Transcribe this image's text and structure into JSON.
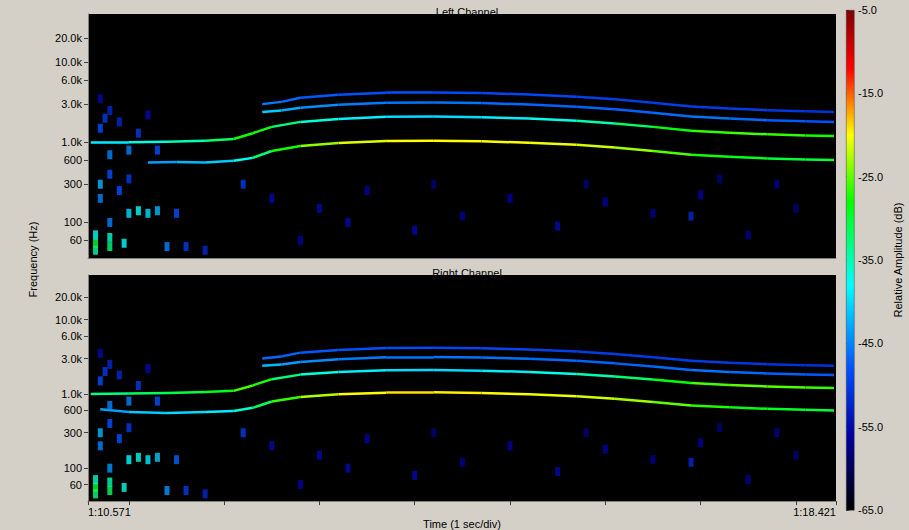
{
  "chart_data": {
    "type": "spectrogram",
    "xlabel": "Time (1 sec/div)",
    "ylabel": "Frequency (Hz)",
    "log": "y",
    "xlim": [
      70.571,
      78.421
    ],
    "xticks": [
      {
        "value": 70.571,
        "label": "1:10.571"
      },
      {
        "value": 78.421,
        "label": "1:18.421"
      }
    ],
    "time_divisions": [
      71,
      72,
      73,
      74,
      75,
      76,
      77,
      78
    ],
    "ylim": [
      36,
      40000
    ],
    "yticks": [
      60,
      100,
      300,
      600,
      {
        "value": 1000,
        "label": "1.0k"
      },
      {
        "value": 3000,
        "label": "3.0k"
      },
      {
        "value": 6000,
        "label": "6.0k"
      },
      {
        "value": 10000,
        "label": "10.0k"
      },
      {
        "value": 20000,
        "label": "20.0k"
      }
    ],
    "colorbar": {
      "label": "Relative Amplitude (dB)",
      "lim": [
        -65,
        -5
      ],
      "ticks": [
        {
          "value": -5,
          "label": "-5.0"
        },
        {
          "value": -15,
          "label": "-15.0"
        },
        {
          "value": -25,
          "label": "-25.0"
        },
        {
          "value": -35,
          "label": "-35.0"
        },
        {
          "value": -45,
          "label": "-45.0"
        },
        {
          "value": -55,
          "label": "-55.0"
        },
        {
          "value": -65,
          "label": "-65.0"
        }
      ]
    },
    "panels": [
      {
        "title": "Left Channel",
        "tracks": [
          {
            "t": [
              71.2,
              71.5,
              71.8,
              72.1,
              72.3,
              72.5,
              72.8,
              73.2,
              73.7,
              74.2,
              74.7,
              75.2,
              75.7,
              76.1,
              76.5,
              76.9,
              77.3,
              77.7,
              78.1,
              78.4
            ],
            "freq": [
              560,
              570,
              560,
              590,
              640,
              780,
              900,
              980,
              1040,
              1050,
              1030,
              990,
              930,
              860,
              780,
              700,
              660,
              630,
              610,
              600
            ],
            "db": [
              -45,
              -42,
              -42,
              -40,
              -35,
              -30,
              -25,
              -22,
              -20,
              -20,
              -20,
              -20,
              -21,
              -22,
              -24,
              -27,
              -28,
              -30,
              -30,
              -30
            ]
          },
          {
            "t": [
              70.6,
              71.0,
              71.4,
              71.8,
              72.1,
              72.3,
              72.5,
              72.8,
              73.2,
              73.7,
              74.2,
              74.7,
              75.2,
              75.7,
              76.1,
              76.5,
              76.9,
              77.3,
              77.7,
              78.1,
              78.4
            ],
            "freq": [
              1000,
              1000,
              1020,
              1050,
              1100,
              1300,
              1560,
              1800,
              1960,
              2080,
              2100,
              2060,
              1980,
              1860,
              1720,
              1560,
              1400,
              1320,
              1260,
              1220,
              1200
            ],
            "db": [
              -40,
              -38,
              -36,
              -34,
              -30,
              -25,
              -30,
              -35,
              -38,
              -40,
              -40,
              -40,
              -38,
              -36,
              -34,
              -30,
              -27,
              -26,
              -26,
              -27,
              -28
            ]
          },
          {
            "t": [
              72.4,
              72.6,
              72.8,
              73.2,
              73.7,
              74.2,
              74.7,
              75.2,
              75.7,
              76.1,
              76.5,
              76.9,
              77.3,
              77.7,
              78.1,
              78.4
            ],
            "freq": [
              2400,
              2500,
              2700,
              2940,
              3120,
              3150,
              3090,
              2970,
              2790,
              2580,
              2340,
              2100,
              1980,
              1890,
              1830,
              1800
            ],
            "db": [
              -40,
              -42,
              -44,
              -45,
              -46,
              -46,
              -46,
              -47,
              -47,
              -47,
              -47,
              -46,
              -46,
              -47,
              -48,
              -48
            ]
          },
          {
            "t": [
              72.4,
              72.6,
              72.8,
              73.2,
              73.7,
              74.2,
              74.7,
              75.2,
              75.7,
              76.1,
              76.5,
              76.9,
              77.3,
              77.7,
              78.1,
              78.4
            ],
            "freq": [
              3000,
              3200,
              3600,
              3920,
              4160,
              4200,
              4120,
              3960,
              3720,
              3440,
              3120,
              2800,
              2640,
              2520,
              2440,
              2400
            ],
            "db": [
              -45,
              -46,
              -47,
              -48,
              -48,
              -48,
              -49,
              -49,
              -49,
              -50,
              -50,
              -50,
              -50,
              -50,
              -51,
              -51
            ]
          }
        ],
        "noise": {
          "t": [
            70.65,
            70.65,
            70.65,
            70.8,
            70.8,
            70.8,
            70.95,
            71.0,
            71.1,
            71.2,
            71.3,
            71.4,
            71.5,
            71.6,
            71.8,
            70.7,
            70.7,
            70.8,
            70.9,
            71.0,
            70.7,
            70.75,
            70.8,
            70.9,
            71.1,
            71.2,
            70.7,
            71.3,
            71.0,
            70.8,
            72.2,
            72.5,
            73.0,
            73.5,
            74.0,
            74.5,
            75.0,
            75.5,
            76.0,
            76.5,
            77.0,
            77.5,
            78.0,
            72.8,
            73.3,
            74.2,
            75.8,
            77.2,
            76.9,
            77.8
          ],
          "freq": [
            45,
            55,
            70,
            50,
            65,
            100,
            55,
            130,
            140,
            130,
            140,
            50,
            130,
            50,
            45,
            200,
            300,
            400,
            250,
            350,
            1500,
            2000,
            2500,
            1800,
            1300,
            2200,
            3500,
            800,
            800,
            700,
            300,
            200,
            150,
            250,
            80,
            120,
            200,
            90,
            180,
            130,
            220,
            70,
            150,
            60,
            100,
            300,
            300,
            350,
            120,
            300
          ],
          "db": [
            -35,
            -30,
            -38,
            -33,
            -36,
            -45,
            -38,
            -40,
            -38,
            -40,
            -42,
            -45,
            -48,
            -50,
            -52,
            -45,
            -42,
            -48,
            -48,
            -50,
            -48,
            -50,
            -52,
            -52,
            -50,
            -55,
            -55,
            -48,
            -45,
            -45,
            -50,
            -55,
            -55,
            -56,
            -55,
            -57,
            -56,
            -55,
            -56,
            -57,
            -56,
            -57,
            -58,
            -56,
            -55,
            -58,
            -58,
            -58,
            -52,
            -57
          ]
        }
      },
      {
        "title": "Right Channel",
        "tracks": [
          {
            "t": [
              70.7,
              71.0,
              71.4,
              71.8,
              72.1,
              72.3,
              72.5,
              72.8,
              73.2,
              73.7,
              74.2,
              74.7,
              75.2,
              75.7,
              76.1,
              76.5,
              76.9,
              77.3,
              77.7,
              78.1,
              78.4
            ],
            "freq": [
              620,
              570,
              555,
              570,
              590,
              650,
              790,
              910,
              990,
              1040,
              1050,
              1030,
              990,
              930,
              860,
              780,
              700,
              660,
              630,
              610,
              600
            ],
            "db": [
              -45,
              -42,
              -40,
              -40,
              -38,
              -34,
              -29,
              -24,
              -21,
              -19,
              -19,
              -20,
              -20,
              -21,
              -22,
              -24,
              -26,
              -28,
              -29,
              -30,
              -30
            ]
          },
          {
            "t": [
              70.6,
              71.0,
              71.4,
              71.8,
              72.1,
              72.3,
              72.5,
              72.8,
              73.2,
              73.7,
              74.2,
              74.7,
              75.2,
              75.7,
              76.1,
              76.5,
              76.9,
              77.3,
              77.7,
              78.1,
              78.4
            ],
            "freq": [
              1000,
              1010,
              1030,
              1060,
              1100,
              1300,
              1580,
              1820,
              1980,
              2080,
              2100,
              2060,
              1980,
              1860,
              1720,
              1560,
              1400,
              1320,
              1260,
              1220,
              1200
            ],
            "db": [
              -34,
              -32,
              -31,
              -30,
              -28,
              -24,
              -30,
              -35,
              -38,
              -40,
              -40,
              -40,
              -38,
              -36,
              -34,
              -30,
              -27,
              -25,
              -25,
              -26,
              -27
            ]
          },
          {
            "t": [
              72.4,
              72.6,
              72.8,
              73.2,
              73.7,
              74.2,
              74.7,
              75.2,
              75.7,
              76.1,
              76.5,
              76.9,
              77.3,
              77.7,
              78.1,
              78.4
            ],
            "freq": [
              2400,
              2500,
              2700,
              2940,
              3120,
              3150,
              3090,
              2970,
              2790,
              2580,
              2340,
              2100,
              1980,
              1890,
              1830,
              1800
            ],
            "db": [
              -41,
              -43,
              -44,
              -45,
              -46,
              -46,
              -46,
              -46,
              -47,
              -47,
              -47,
              -46,
              -46,
              -47,
              -47,
              -48
            ]
          },
          {
            "t": [
              72.4,
              72.6,
              72.8,
              73.2,
              73.7,
              74.2,
              74.7,
              75.2,
              75.7,
              76.1,
              76.5,
              76.9,
              77.3,
              77.7,
              78.1,
              78.4
            ],
            "freq": [
              3000,
              3200,
              3600,
              3920,
              4160,
              4200,
              4120,
              3960,
              3720,
              3440,
              3120,
              2800,
              2640,
              2520,
              2440,
              2400
            ],
            "db": [
              -46,
              -47,
              -47,
              -48,
              -48,
              -49,
              -49,
              -49,
              -50,
              -50,
              -50,
              -50,
              -50,
              -51,
              -51,
              -51
            ]
          }
        ],
        "noise": {
          "t": [
            70.65,
            70.65,
            70.65,
            70.8,
            70.8,
            70.8,
            70.95,
            71.0,
            71.1,
            71.2,
            71.3,
            71.4,
            71.5,
            71.6,
            71.8,
            70.7,
            70.7,
            70.8,
            70.9,
            71.0,
            70.7,
            70.75,
            70.8,
            70.9,
            71.1,
            71.2,
            70.7,
            71.3,
            71.0,
            70.8,
            72.2,
            72.5,
            73.0,
            73.5,
            74.0,
            74.5,
            75.0,
            75.5,
            76.0,
            76.5,
            77.0,
            77.5,
            78.0,
            72.8,
            73.3,
            74.2,
            75.8,
            77.2,
            76.9,
            77.8
          ],
          "freq": [
            45,
            55,
            70,
            50,
            65,
            100,
            55,
            130,
            140,
            130,
            140,
            50,
            130,
            50,
            45,
            200,
            300,
            400,
            250,
            350,
            1500,
            2000,
            2500,
            1800,
            1300,
            2200,
            3500,
            800,
            800,
            700,
            300,
            200,
            150,
            250,
            80,
            120,
            200,
            90,
            180,
            130,
            220,
            70,
            150,
            60,
            100,
            300,
            300,
            350,
            120,
            300
          ],
          "db": [
            -33,
            -30,
            -36,
            -32,
            -35,
            -44,
            -37,
            -38,
            -37,
            -39,
            -41,
            -44,
            -47,
            -50,
            -52,
            -45,
            -42,
            -48,
            -48,
            -50,
            -48,
            -50,
            -52,
            -52,
            -50,
            -55,
            -55,
            -48,
            -45,
            -45,
            -50,
            -55,
            -55,
            -56,
            -55,
            -57,
            -56,
            -55,
            -56,
            -57,
            -56,
            -57,
            -58,
            -56,
            -55,
            -58,
            -58,
            -58,
            -52,
            -57
          ]
        }
      }
    ]
  }
}
